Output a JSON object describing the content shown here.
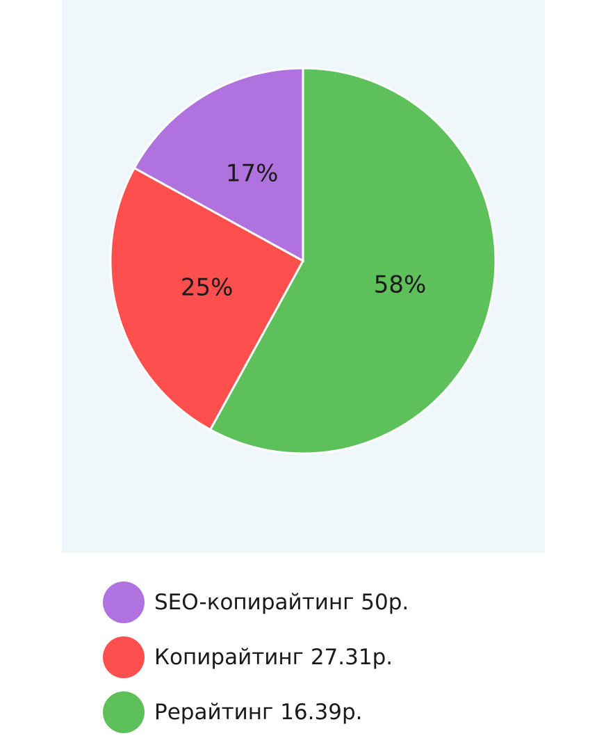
{
  "chart_data": {
    "type": "pie",
    "categories": [
      "SEO-копирайтинг 50р.",
      "Копирайтинг 27.31р.",
      "Рерайтинг 16.39р."
    ],
    "values": [
      17,
      25,
      58
    ],
    "data_labels": [
      "17%",
      "25%",
      "58%"
    ],
    "colors": [
      "#b072de",
      "#fe4f4f",
      "#5dc05a"
    ],
    "legend_position": "bottom"
  }
}
